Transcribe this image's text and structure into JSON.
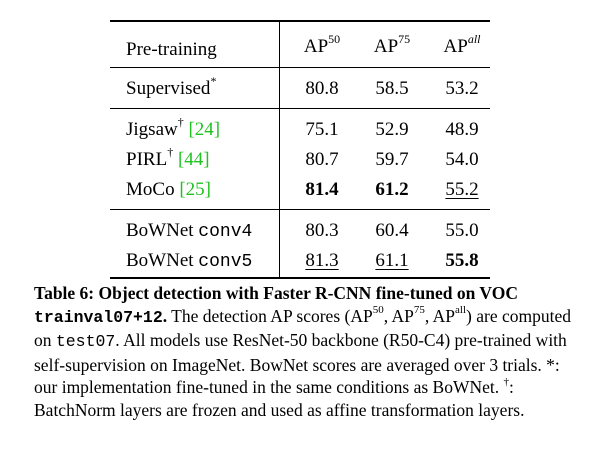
{
  "table": {
    "header": {
      "col0": "Pre-training",
      "ap": "AP",
      "ap50_sup": "50",
      "ap75_sup": "75",
      "apall_sup": "all"
    },
    "rows": [
      {
        "name": "Supervised",
        "sup": "*",
        "cite": "",
        "mono": "",
        "ap50": "80.8",
        "ap75": "58.5",
        "apall": "53.2"
      },
      {
        "name": "Jigsaw",
        "sup": "†",
        "cite": "[24]",
        "mono": "",
        "ap50": "75.1",
        "ap75": "52.9",
        "apall": "48.9"
      },
      {
        "name": "PIRL",
        "sup": "†",
        "cite": "[44]",
        "mono": "",
        "ap50": "80.7",
        "ap75": "59.7",
        "apall": "54.0"
      },
      {
        "name": "MoCo",
        "sup": "",
        "cite": "[25]",
        "mono": "",
        "ap50": "81.4",
        "ap75": "61.2",
        "apall": "55.2"
      },
      {
        "name": "BoWNet",
        "sup": "",
        "cite": "",
        "mono": "conv4",
        "ap50": "80.3",
        "ap75": "60.4",
        "apall": "55.0"
      },
      {
        "name": "BoWNet",
        "sup": "",
        "cite": "",
        "mono": "conv5",
        "ap50": "81.3",
        "ap75": "61.1",
        "apall": "55.8"
      }
    ]
  },
  "caption": {
    "label": "Table 6:",
    "title_1": "Object detection with Faster R-CNN fine-tuned on VOC",
    "title_mono": "trainval07+12",
    "title_end": ".",
    "text_1": "The detection AP scores (AP",
    "sup_50": "50",
    "text_2": ", AP",
    "sup_75": "75",
    "text_3": ", AP",
    "sup_all": "all",
    "text_4": ") are computed on",
    "mono_test": "test07",
    "text_5": ". All models use ResNet-50 backbone (R50-C4) pre-trained with self-supervision on ImageNet. BowNet scores are averaged over 3 trials. *: our implementation fine-tuned in the same conditions as BoWNet.",
    "dagger": "†",
    "text_6": ": BatchNorm layers are frozen and used as affine transformation layers."
  }
}
